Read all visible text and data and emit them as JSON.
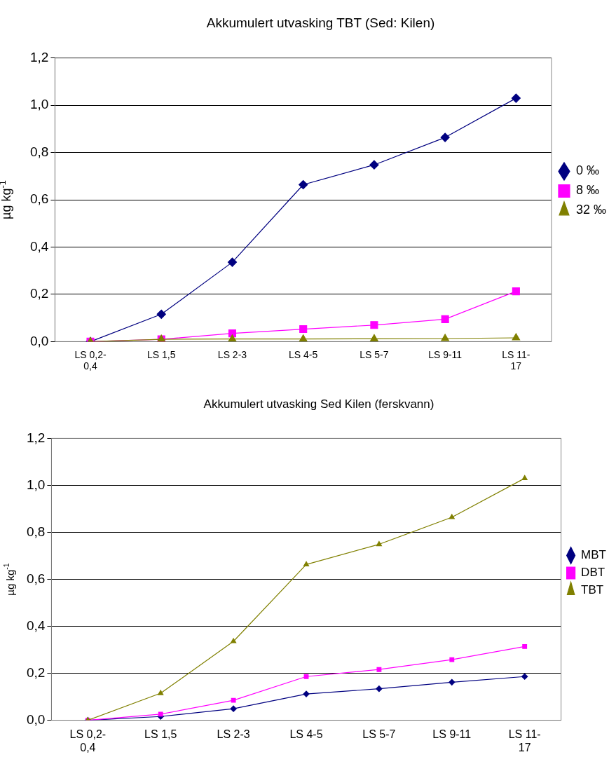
{
  "chart_data": [
    {
      "type": "line",
      "title": "Akkumulert utvasking TBT (Sed: Kilen)",
      "ylabel": "µg kg$^{-1}$",
      "categories": [
        "LS 0,2-0,4",
        "LS 1,5",
        "LS 2-3",
        "LS 4-5",
        "LS 5-7",
        "LS 9-11",
        "LS 11-17"
      ],
      "series": [
        {
          "name": "0 ‰",
          "color": "#000080",
          "marker": "diamond",
          "values": [
            0,
            0.116,
            0.336,
            0.664,
            0.748,
            0.864,
            1.03
          ]
        },
        {
          "name": "8 ‰",
          "color": "#ff00ff",
          "marker": "square",
          "values": [
            0,
            0.01,
            0.035,
            0.053,
            0.07,
            0.095,
            0.213
          ]
        },
        {
          "name": "32 ‰",
          "color": "#808000",
          "marker": "triangle",
          "values": [
            0,
            0.01,
            0.011,
            0.011,
            0.012,
            0.013,
            0.016
          ]
        }
      ],
      "ylim": [
        0,
        1.2
      ],
      "yticks": [
        {
          "value": 0,
          "label": "0,0"
        },
        {
          "value": 0.2,
          "label": "0,2"
        },
        {
          "value": 0.4,
          "label": "0,4"
        },
        {
          "value": 0.6,
          "label": "0,6"
        },
        {
          "value": 0.8,
          "label": "0,8"
        },
        {
          "value": 1,
          "label": "1,0"
        },
        {
          "value": 1.2,
          "label": "1,2"
        }
      ],
      "grid": "y",
      "legend": "right"
    },
    {
      "type": "line",
      "title": "Akkumulert utvasking Sed Kilen (ferskvann)",
      "ylabel": "µg kg$^{-1}$",
      "categories": [
        "LS 0,2-0,4",
        "LS 1,5",
        "LS 2-3",
        "LS 4-5",
        "LS 5-7",
        "LS 9-11",
        "LS 11-17"
      ],
      "series": [
        {
          "name": "MBT",
          "color": "#000080",
          "marker": "diamond",
          "values": [
            0,
            0.016,
            0.049,
            0.112,
            0.134,
            0.162,
            0.186
          ]
        },
        {
          "name": "DBT",
          "color": "#ff00ff",
          "marker": "square",
          "values": [
            0,
            0.026,
            0.085,
            0.186,
            0.216,
            0.258,
            0.314
          ]
        },
        {
          "name": "TBT",
          "color": "#808000",
          "marker": "triangle",
          "values": [
            0,
            0.115,
            0.336,
            0.663,
            0.749,
            0.864,
            1.03
          ]
        }
      ],
      "ylim": [
        0,
        1.2
      ],
      "yticks": [
        {
          "value": 0,
          "label": "0,0"
        },
        {
          "value": 0.2,
          "label": "0,2"
        },
        {
          "value": 0.4,
          "label": "0,4"
        },
        {
          "value": 0.6,
          "label": "0,6"
        },
        {
          "value": 0.8,
          "label": "0,8"
        },
        {
          "value": 1,
          "label": "1,0"
        },
        {
          "value": 1.2,
          "label": "1,2"
        }
      ],
      "grid": "y",
      "legend": "right"
    }
  ]
}
